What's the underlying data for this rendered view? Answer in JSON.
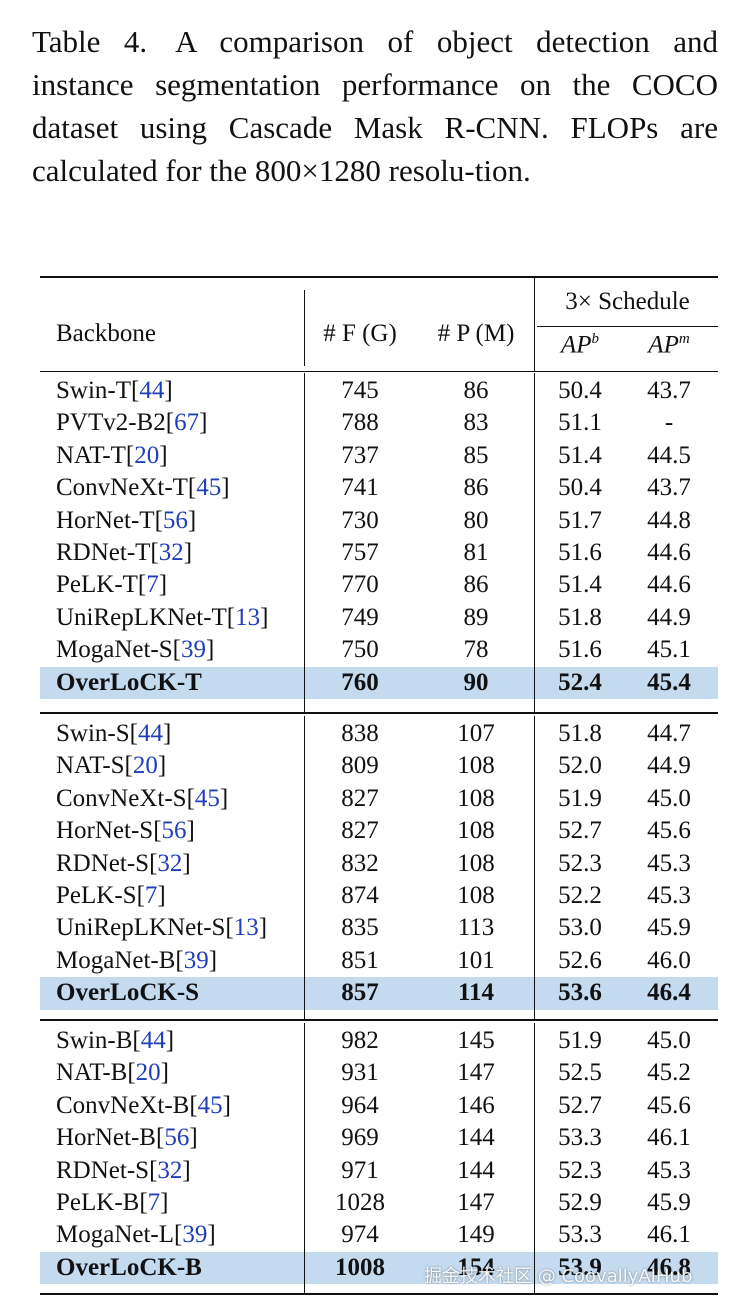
{
  "caption": {
    "label": "Table 4.",
    "text": "A comparison of object detection and instance segmentation performance on the COCO dataset using Cascade Mask R-CNN. FLOPs are calculated for the 800×1280 resolu-tion."
  },
  "table": {
    "headers": {
      "backbone": "Backbone",
      "flops": "# F (G)",
      "params": "# P (M)",
      "schedule": "3× Schedule",
      "apb": "AP",
      "apb_sup": "b",
      "apm": "AP",
      "apm_sup": "m"
    },
    "groups": [
      {
        "rows": [
          {
            "name": "Swin-T",
            "ref": "44",
            "f": "745",
            "p": "86",
            "apb": "50.4",
            "apm": "43.7"
          },
          {
            "name": "PVTv2-B2",
            "ref": "67",
            "f": "788",
            "p": "83",
            "apb": "51.1",
            "apm": "-"
          },
          {
            "name": "NAT-T",
            "ref": "20",
            "f": "737",
            "p": "85",
            "apb": "51.4",
            "apm": "44.5"
          },
          {
            "name": "ConvNeXt-T",
            "ref": "45",
            "f": "741",
            "p": "86",
            "apb": "50.4",
            "apm": "43.7"
          },
          {
            "name": "HorNet-T",
            "ref": "56",
            "f": "730",
            "p": "80",
            "apb": "51.7",
            "apm": "44.8"
          },
          {
            "name": "RDNet-T",
            "ref": "32",
            "f": "757",
            "p": "81",
            "apb": "51.6",
            "apm": "44.6"
          },
          {
            "name": "PeLK-T",
            "ref": "7",
            "f": "770",
            "p": "86",
            "apb": "51.4",
            "apm": "44.6"
          },
          {
            "name": "UniRepLKNet-T",
            "ref": "13",
            "f": "749",
            "p": "89",
            "apb": "51.8",
            "apm": "44.9"
          },
          {
            "name": "MogaNet-S",
            "ref": "39",
            "f": "750",
            "p": "78",
            "apb": "51.6",
            "apm": "45.1"
          },
          {
            "name": "OverLoCK-T",
            "ref": "",
            "f": "760",
            "p": "90",
            "apb": "52.4",
            "apm": "45.4",
            "highlight": true
          }
        ]
      },
      {
        "rows": [
          {
            "name": "Swin-S",
            "ref": "44",
            "f": "838",
            "p": "107",
            "apb": "51.8",
            "apm": "44.7"
          },
          {
            "name": "NAT-S",
            "ref": "20",
            "f": "809",
            "p": "108",
            "apb": "52.0",
            "apm": "44.9"
          },
          {
            "name": "ConvNeXt-S",
            "ref": "45",
            "f": "827",
            "p": "108",
            "apb": "51.9",
            "apm": "45.0"
          },
          {
            "name": "HorNet-S",
            "ref": "56",
            "f": "827",
            "p": "108",
            "apb": "52.7",
            "apm": "45.6"
          },
          {
            "name": "RDNet-S",
            "ref": "32",
            "f": "832",
            "p": "108",
            "apb": "52.3",
            "apm": "45.3"
          },
          {
            "name": "PeLK-S",
            "ref": "7",
            "f": "874",
            "p": "108",
            "apb": "52.2",
            "apm": "45.3"
          },
          {
            "name": "UniRepLKNet-S",
            "ref": "13",
            "f": "835",
            "p": "113",
            "apb": "53.0",
            "apm": "45.9"
          },
          {
            "name": "MogaNet-B",
            "ref": "39",
            "f": "851",
            "p": "101",
            "apb": "52.6",
            "apm": "46.0"
          },
          {
            "name": "OverLoCK-S",
            "ref": "",
            "f": "857",
            "p": "114",
            "apb": "53.6",
            "apm": "46.4",
            "highlight": true
          }
        ]
      },
      {
        "rows": [
          {
            "name": "Swin-B",
            "ref": "44",
            "f": "982",
            "p": "145",
            "apb": "51.9",
            "apm": "45.0"
          },
          {
            "name": "NAT-B",
            "ref": "20",
            "f": "931",
            "p": "147",
            "apb": "52.5",
            "apm": "45.2"
          },
          {
            "name": "ConvNeXt-B",
            "ref": "45",
            "f": "964",
            "p": "146",
            "apb": "52.7",
            "apm": "45.6"
          },
          {
            "name": "HorNet-B",
            "ref": "56",
            "f": "969",
            "p": "144",
            "apb": "53.3",
            "apm": "46.1"
          },
          {
            "name": "RDNet-S",
            "ref": "32",
            "f": "971",
            "p": "144",
            "apb": "52.3",
            "apm": "45.3"
          },
          {
            "name": "PeLK-B",
            "ref": "7",
            "f": "1028",
            "p": "147",
            "apb": "52.9",
            "apm": "45.9"
          },
          {
            "name": "MogaNet-L",
            "ref": "39",
            "f": "974",
            "p": "149",
            "apb": "53.3",
            "apm": "46.1"
          },
          {
            "name": "OverLoCK-B",
            "ref": "",
            "f": "1008",
            "p": "154",
            "apb": "53.9",
            "apm": "46.8",
            "highlight": true
          }
        ]
      }
    ]
  },
  "watermark": "掘金技术社区 @ CoovallyAIHub"
}
